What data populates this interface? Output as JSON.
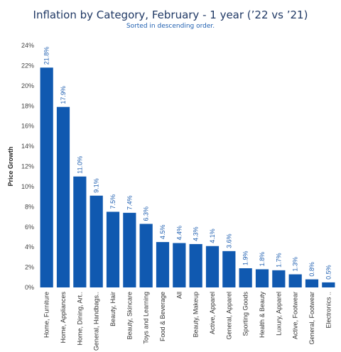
{
  "chart_data": {
    "type": "bar",
    "title": "Inflation by Category, February - 1 year (’22 vs ’21)",
    "subtitle": "Sorted in descending order.",
    "xlabel": "",
    "ylabel": "Price Growth",
    "ylim": [
      0,
      24
    ],
    "yticks": [
      "0%",
      "2%",
      "4%",
      "6%",
      "8%",
      "10%",
      "12%",
      "14%",
      "16%",
      "18%",
      "20%",
      "22%",
      "24%"
    ],
    "grid": false,
    "bar_color": "#1059b0",
    "label_color": "#1f5fb0",
    "categories": [
      "Home, Furniture",
      "Home, Appliances",
      "Home, Dining, Art..",
      "General, Handbags..",
      "Beauty, Hair",
      "Beauty, Skincare",
      "Toys and Learning",
      "Food & Beverage",
      "All",
      "Beauty, Makeup",
      "Active, Apparel",
      "General, Apparel",
      "Sporting Goods",
      "Health & Beauty",
      "Luxury, Apparel",
      "Active, Footwear",
      "General, Footwear",
      "Electronics .."
    ],
    "values": [
      21.8,
      17.9,
      11.0,
      9.1,
      7.5,
      7.4,
      6.3,
      4.5,
      4.4,
      4.3,
      4.1,
      3.6,
      1.9,
      1.8,
      1.7,
      1.3,
      0.8,
      0.5
    ],
    "data_labels": [
      "21.8%",
      "17.9%",
      "11.0%",
      "9.1%",
      "7.5%",
      "7.4%",
      "6.3%",
      "4.5%",
      "4.4%",
      "4.3%",
      "4.1%",
      "3.6%",
      "1.9%",
      "1.8%",
      "1.7%",
      "1.3%",
      "0.8%",
      "0.5%"
    ]
  }
}
